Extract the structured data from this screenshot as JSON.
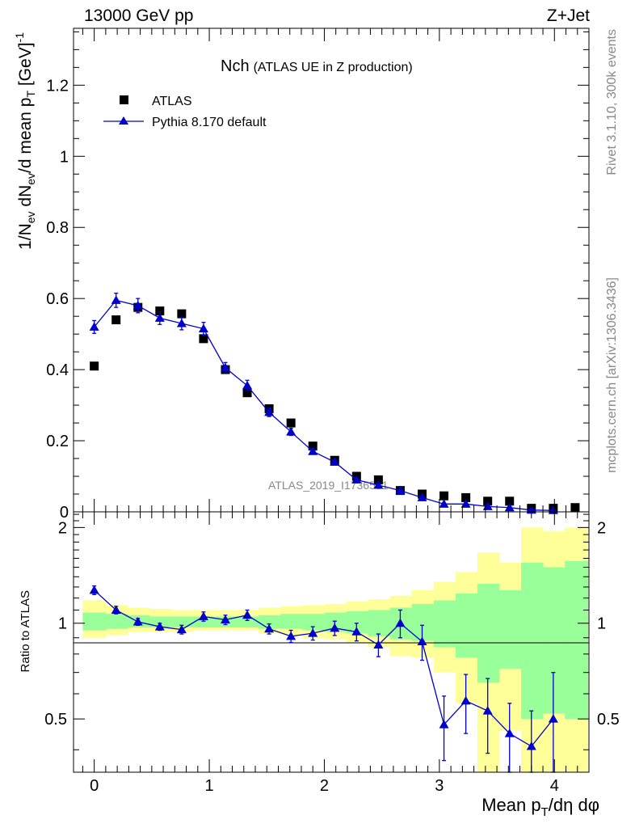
{
  "header": {
    "energy_label": "13000 GeV pp",
    "process_label": "Z+Jet"
  },
  "side_labels": {
    "rivet": "Rivet 3.1.10,  300k events",
    "mcplots": "mcplots.cern.ch [arXiv:1306.3436]"
  },
  "chart_data": [
    {
      "type": "scatter",
      "title": "Nch",
      "subtitle": "(ATLAS UE in Z production)",
      "watermark": "ATLAS_2019_I1736531",
      "ylabel": "1/N_ev dN_ev/d mean p_T [GeV]^-1",
      "xlim": [
        -0.18,
        4.3
      ],
      "ylim": [
        0,
        1.36
      ],
      "yticks": [
        "0",
        "0.2",
        "0.4",
        "0.6",
        "0.8",
        "1",
        "1.2"
      ],
      "legend": {
        "placement": "top-left",
        "entries": [
          "ATLAS",
          "Pythia 8.170 default"
        ]
      },
      "x": [
        0.0,
        0.19,
        0.38,
        0.57,
        0.76,
        0.95,
        1.14,
        1.33,
        1.52,
        1.71,
        1.9,
        2.09,
        2.28,
        2.47,
        2.66,
        2.85,
        3.04,
        3.23,
        3.42,
        3.61,
        3.8,
        3.99,
        4.18
      ],
      "series": [
        {
          "name": "ATLAS",
          "marker": "square",
          "color": "#000000",
          "values": [
            0.41,
            0.54,
            0.575,
            0.565,
            0.557,
            0.487,
            0.4,
            0.335,
            0.29,
            0.25,
            0.185,
            0.145,
            0.1,
            0.09,
            0.06,
            0.05,
            0.045,
            0.04,
            0.03,
            0.03,
            0.01,
            0.01,
            0.012
          ]
        },
        {
          "name": "Pythia 8.170 default",
          "marker": "triangle",
          "color": "#0000cc",
          "values": [
            0.52,
            0.595,
            0.58,
            0.545,
            0.53,
            0.515,
            0.405,
            0.355,
            0.28,
            0.225,
            0.17,
            0.14,
            0.09,
            0.075,
            0.06,
            0.04,
            0.022,
            0.022,
            0.015,
            0.012,
            0.005,
            0.004,
            null
          ],
          "errors": [
            0.018,
            0.02,
            0.02,
            0.018,
            0.018,
            0.018,
            0.015,
            0.015,
            0.012,
            0.01,
            0.008,
            0.007,
            0.006,
            0.005,
            0.004,
            0.004,
            0.003,
            0.003,
            0.003,
            0.003,
            0.003,
            0.003,
            null
          ]
        }
      ]
    },
    {
      "type": "scatter",
      "title": "",
      "xlabel": "Mean p_T/dη dφ",
      "ylabel": "Ratio to ATLAS",
      "xlim": [
        -0.18,
        4.3
      ],
      "ylim": [
        0.34,
        2.24
      ],
      "xticks": [
        "0",
        "1",
        "2",
        "3",
        "4"
      ],
      "yticks": [
        "0.5",
        "1",
        "2"
      ],
      "band_edges": [
        -0.1,
        0.1,
        0.29,
        0.48,
        0.67,
        0.86,
        1.05,
        1.24,
        1.43,
        1.62,
        1.81,
        2.0,
        2.19,
        2.38,
        2.57,
        2.76,
        2.95,
        3.14,
        3.33,
        3.52,
        3.71,
        3.9,
        4.09,
        4.29
      ],
      "yellow_band": {
        "upper": [
          1.18,
          1.14,
          1.12,
          1.11,
          1.1,
          1.1,
          1.1,
          1.1,
          1.12,
          1.13,
          1.14,
          1.15,
          1.17,
          1.19,
          1.22,
          1.27,
          1.35,
          1.45,
          1.67,
          1.55,
          2.0,
          1.95,
          2.0
        ],
        "lower": [
          0.9,
          0.92,
          0.94,
          0.94,
          0.94,
          0.95,
          0.95,
          0.95,
          0.93,
          0.92,
          0.9,
          0.89,
          0.87,
          0.84,
          0.79,
          0.78,
          0.7,
          0.56,
          0.34,
          0.46,
          0.34,
          0.34,
          0.34
        ]
      },
      "green_band": {
        "upper": [
          1.08,
          1.07,
          1.06,
          1.05,
          1.05,
          1.05,
          1.05,
          1.05,
          1.06,
          1.07,
          1.07,
          1.08,
          1.09,
          1.1,
          1.12,
          1.15,
          1.18,
          1.24,
          1.33,
          1.27,
          1.55,
          1.5,
          1.57
        ],
        "lower": [
          0.95,
          0.96,
          0.97,
          0.97,
          0.97,
          0.97,
          0.97,
          0.97,
          0.96,
          0.96,
          0.95,
          0.94,
          0.93,
          0.91,
          0.89,
          0.88,
          0.84,
          0.78,
          0.65,
          0.72,
          0.5,
          0.52,
          0.5
        ]
      },
      "series": [
        {
          "name": "Pythia 8.170 default / ATLAS",
          "marker": "triangle",
          "color": "#0000cc",
          "x": [
            0.0,
            0.19,
            0.38,
            0.57,
            0.76,
            0.95,
            1.14,
            1.33,
            1.52,
            1.71,
            1.9,
            2.09,
            2.28,
            2.47,
            2.66,
            2.85,
            3.04,
            3.23,
            3.42,
            3.61,
            3.8,
            3.99
          ],
          "values": [
            1.27,
            1.1,
            1.01,
            0.975,
            0.955,
            1.05,
            1.025,
            1.06,
            0.96,
            0.91,
            0.93,
            0.965,
            0.94,
            0.855,
            1.0,
            0.875,
            0.48,
            0.57,
            0.53,
            0.45,
            0.41,
            0.5
          ],
          "errors": [
            0.04,
            0.03,
            0.025,
            0.025,
            0.03,
            0.035,
            0.035,
            0.04,
            0.035,
            0.04,
            0.045,
            0.05,
            0.06,
            0.07,
            0.1,
            0.11,
            0.11,
            0.12,
            0.14,
            0.11,
            0.12,
            0.2
          ]
        }
      ]
    }
  ]
}
